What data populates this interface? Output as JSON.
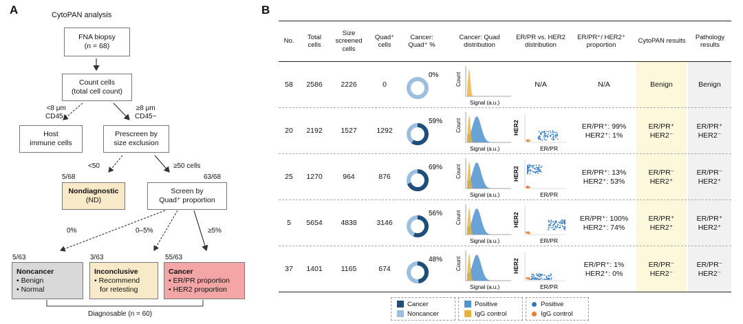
{
  "panel_a": {
    "letter": "A",
    "title": "CytoPAN analysis",
    "fna_line1": "FNA biopsy",
    "fna_line2": "(n = 68)",
    "count_line1": "Count cells",
    "count_line2": "(total cell count)",
    "lt8_line1": "<8 μm",
    "lt8_line2": "CD45+",
    "ge8_line1": "≥8 μm",
    "ge8_line2": "CD45−",
    "host_line1": "Host",
    "host_line2": "immune cells",
    "prescreen_line1": "Prescreen by",
    "prescreen_line2": "size exclusion",
    "lt50": "<50",
    "ge50": "≥50 cells",
    "nd_count": "5/68",
    "nd_title": "Nondiagnostic",
    "nd_sub": "(ND)",
    "screen_count": "63/68",
    "screen_line1": "Screen by",
    "screen_line2": "Quad⁺ proportion",
    "pct_0": "0%",
    "pct_0_5": "0–5%",
    "pct_ge5": "≥5%",
    "noncancer_count": "5/63",
    "noncancer_title": "Noncancer",
    "noncancer_item1": "• Benign",
    "noncancer_item2": "• Normal",
    "inconcl_count": "3/63",
    "inconcl_title": "Inconclusive",
    "inconcl_item1": "• Recommend",
    "inconcl_item2": "for retesting",
    "cancer_count": "55/63",
    "cancer_title": "Cancer",
    "cancer_item1": "• ER/PR proportion",
    "cancer_item2": "• HER2 proportion",
    "diagnosable": "Diagnosable (n = 60)"
  },
  "panel_b": {
    "letter": "B",
    "headers": {
      "no": "No.",
      "total": "Total cells",
      "size": "Size screened cells",
      "quad": "Quad⁺ cells",
      "cancer_pct": "Cancer: Quad⁺ %",
      "cancer_dist": "Cancer: Quad distribution",
      "erpr_vs": "ER/PR vs. HER2 distribution",
      "erpr_prop": "ER/PR⁺/ HER2⁺ proportion",
      "cytopan": "CytoPAN results",
      "pathology": "Pathology results"
    },
    "rows": [
      {
        "no": "58",
        "total": "2586",
        "size": "2226",
        "quad": "0",
        "pct": 0,
        "pct_label": "0%",
        "scatter": "N/A",
        "prop1": "N/A",
        "prop2": "",
        "cyto1": "Benign",
        "cyto2": "",
        "path1": "Benign",
        "path2": ""
      },
      {
        "no": "20",
        "total": "2192",
        "size": "1527",
        "quad": "1292",
        "pct": 59,
        "pct_label": "59%",
        "scatter": "",
        "prop1": "ER/PR⁺: 99%",
        "prop2": "HER2⁺: 1%",
        "cyto1": "ER/PR⁺",
        "cyto2": "HER2⁻",
        "path1": "ER/PR⁺",
        "path2": "HER2⁻"
      },
      {
        "no": "25",
        "total": "1270",
        "size": "964",
        "quad": "876",
        "pct": 69,
        "pct_label": "69%",
        "scatter": "",
        "prop1": "ER/PR⁺: 13%",
        "prop2": "HER2⁺: 53%",
        "cyto1": "ER/PR⁻",
        "cyto2": "HER2⁺",
        "path1": "ER/PR⁻",
        "path2": "HER2⁺"
      },
      {
        "no": "5",
        "total": "5654",
        "size": "4838",
        "quad": "3146",
        "pct": 56,
        "pct_label": "56%",
        "scatter": "",
        "prop1": "ER/PR⁺: 100%",
        "prop2": "HER2⁺: 74%",
        "cyto1": "ER/PR⁺",
        "cyto2": "HER2⁺",
        "path1": "ER/PR⁺",
        "path2": "HER2⁺"
      },
      {
        "no": "37",
        "total": "1401",
        "size": "1165",
        "quad": "674",
        "pct": 48,
        "pct_label": "48%",
        "scatter": "",
        "prop1": "ER/PR⁺: 1%",
        "prop2": "HER2⁺: 0%",
        "cyto1": "ER/PR⁻",
        "cyto2": "HER2⁻",
        "path1": "ER/PR⁻",
        "path2": "HER2⁻"
      }
    ],
    "axis_count": "Count",
    "axis_signal": "Signal (a.u.)",
    "axis_her2": "HER2",
    "axis_erpr": "ER/PR",
    "legend": {
      "cancer": "Cancer",
      "noncancer": "Noncancer",
      "positive": "Positive",
      "igg": "IgG control",
      "positive2": "Positive",
      "igg2": "IgG control"
    },
    "colors": {
      "cancer": "#1f4e79",
      "noncancer": "#9dbfdf",
      "positive_bar": "#4f93cf",
      "igg_bar": "#e8b23a",
      "positive_dot": "#2e78c0",
      "igg_dot": "#ef7d2d",
      "nd_fill": "#f8e9c8",
      "noncancer_fill": "#d9d9d9",
      "inconcl_fill": "#f8e9c8",
      "cancer_fill": "#f4a6a6",
      "cytopan_col": "#fdf7dc",
      "pathology_col": "#f1f1f1"
    }
  }
}
